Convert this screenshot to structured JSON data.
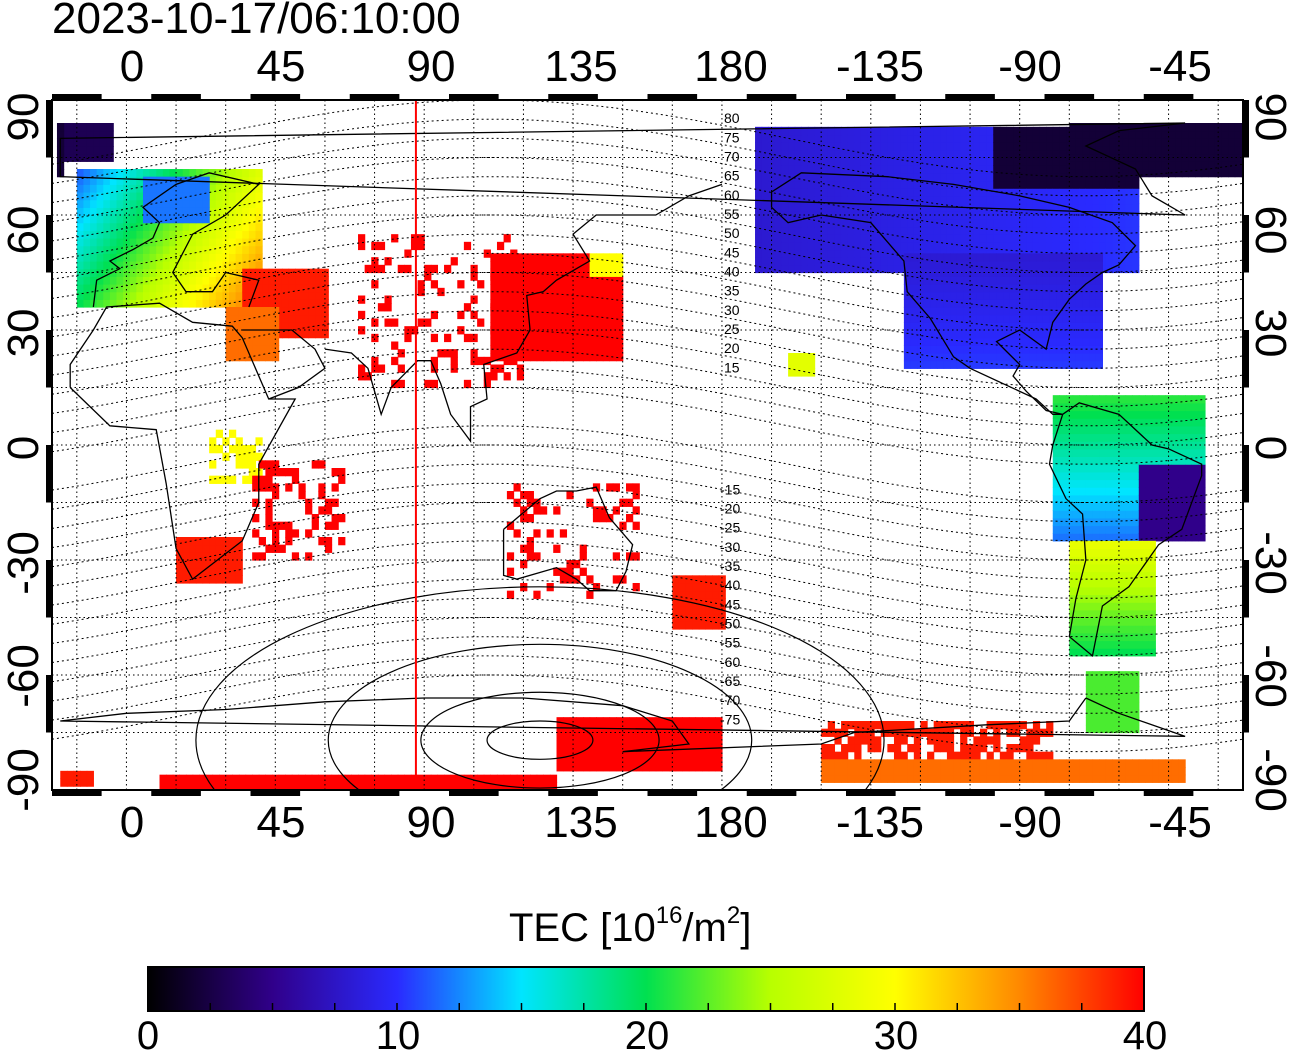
{
  "title": "2023-10-17/06:10:00",
  "longitude_ticks": [
    "0",
    "45",
    "90",
    "135",
    "180",
    "-135",
    "-90",
    "-45"
  ],
  "latitude_ticks": [
    "90",
    "60",
    "30",
    "0",
    "-30",
    "-60",
    "-90"
  ],
  "magnetic_latitude_labels_north": [
    "80",
    "75",
    "70",
    "65",
    "60",
    "55",
    "50",
    "45",
    "40",
    "35",
    "30",
    "25",
    "20",
    "15"
  ],
  "magnetic_latitude_labels_south": [
    "-15",
    "-20",
    "-25",
    "-30",
    "-35",
    "-40",
    "-45",
    "-50",
    "-55",
    "-60",
    "-65",
    "-70",
    "-75"
  ],
  "colorbar": {
    "title_prefix": "TEC  [10",
    "title_sup1": "16",
    "title_mid": "/m",
    "title_sup2": "2",
    "title_suffix": "]",
    "labels": [
      "0",
      "10",
      "20",
      "30",
      "40"
    ],
    "min": 0,
    "max": 40,
    "colors": [
      "#000000",
      "#30008a",
      "#2a2aff",
      "#00e5ff",
      "#00e050",
      "#b8ff00",
      "#ffff00",
      "#ff8800",
      "#ff0000"
    ]
  },
  "subsolar_meridian_color": "#ff0000",
  "map": {
    "projection": "equirectangular",
    "lon_min": -22.5,
    "lon_max": 337.5,
    "lat_min": -90,
    "lat_max": 90,
    "grid": true,
    "terminator_lon": 87.5
  }
}
